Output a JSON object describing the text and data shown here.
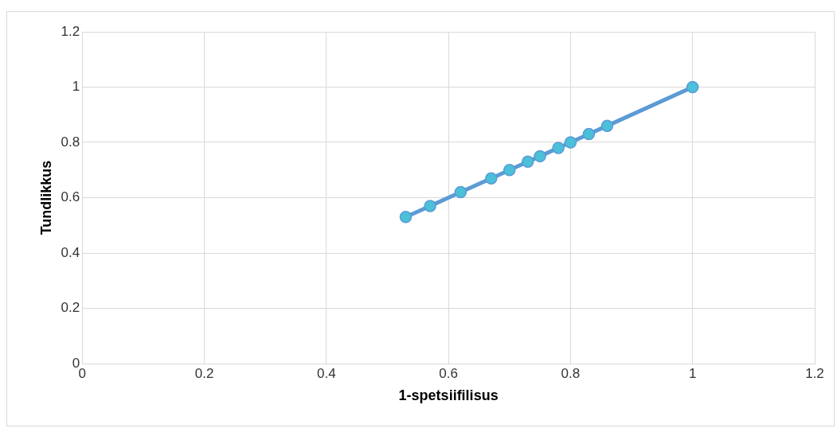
{
  "chart_data": {
    "type": "line",
    "xlabel": "1-spetsiifilisus",
    "ylabel": "Tundlikkus",
    "x": [
      0.53,
      0.57,
      0.62,
      0.67,
      0.7,
      0.73,
      0.75,
      0.78,
      0.8,
      0.83,
      0.86,
      1
    ],
    "series": [
      {
        "color": "#5b9bd5",
        "values": [
          0.53,
          0.57,
          0.62,
          0.67,
          0.7,
          0.73,
          0.75,
          0.78,
          0.8,
          0.83,
          0.86,
          1
        ]
      }
    ],
    "xlim": [
      0,
      1.2
    ],
    "xticks": [
      0,
      0.2,
      0.4,
      0.6,
      0.8,
      1,
      1.2
    ],
    "ylim": [
      0,
      1.2
    ],
    "yticks": [
      0,
      0.2,
      0.4,
      0.6,
      0.8,
      1,
      1.2
    ],
    "grid": true,
    "legend": false,
    "marker": "circle",
    "line_style": "solid"
  }
}
